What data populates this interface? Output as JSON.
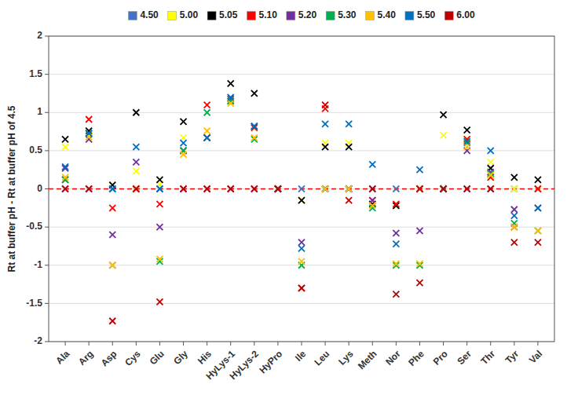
{
  "chart_data": {
    "type": "scatter",
    "marker": "x",
    "categories": [
      "Ala",
      "Arg",
      "Asp",
      "Cys",
      "Glu",
      "Gly",
      "His",
      "HyLys-1",
      "HyLys-2",
      "HyPro",
      "Ile",
      "Leu",
      "Lys",
      "Meth",
      "Nor",
      "Phe",
      "Pro",
      "Ser",
      "Thr",
      "Tyr",
      "Val"
    ],
    "series": [
      {
        "name": "4.50",
        "color": "#4472C4",
        "values": [
          0.0,
          0.0,
          0.0,
          0.0,
          0.0,
          0.0,
          0.0,
          0.0,
          0.0,
          0.0,
          0.0,
          0.0,
          0.0,
          0.0,
          0.0,
          0.0,
          0.0,
          0.0,
          0.0,
          0.0,
          0.0
        ]
      },
      {
        "name": "5.00",
        "color": "#FFFF00",
        "values": [
          0.55,
          0.72,
          0.05,
          0.23,
          0.06,
          0.67,
          0.67,
          1.17,
          0.8,
          0.0,
          -0.15,
          0.6,
          0.6,
          -0.2,
          -0.22,
          0.0,
          0.7,
          0.65,
          0.35,
          0.0,
          0.0
        ]
      },
      {
        "name": "5.05",
        "color": "#000000",
        "values": [
          0.65,
          0.76,
          0.05,
          1.0,
          0.12,
          0.88,
          0.67,
          1.38,
          1.25,
          0.0,
          -0.15,
          0.55,
          0.55,
          -0.2,
          -0.22,
          0.0,
          0.97,
          0.77,
          0.27,
          0.15,
          0.12
        ]
      },
      {
        "name": "5.10",
        "color": "#FF0000",
        "values": [
          0.12,
          0.91,
          -0.25,
          0.0,
          -0.2,
          0.5,
          1.1,
          1.15,
          0.8,
          0.0,
          -1.3,
          1.05,
          0.0,
          -0.15,
          -0.2,
          0.0,
          0.0,
          0.65,
          0.15,
          -0.5,
          0.0
        ]
      },
      {
        "name": "5.20",
        "color": "#7030A0",
        "values": [
          0.27,
          0.65,
          -0.6,
          0.35,
          -0.5,
          0.5,
          0.67,
          1.18,
          0.82,
          0.0,
          -0.7,
          0.0,
          0.0,
          -0.15,
          -0.58,
          -0.55,
          0.0,
          0.5,
          0.22,
          -0.27,
          -0.25
        ]
      },
      {
        "name": "5.30",
        "color": "#00B050",
        "values": [
          0.12,
          0.72,
          -1.0,
          0.0,
          -0.95,
          0.5,
          1.0,
          1.15,
          0.65,
          0.0,
          -1.0,
          0.0,
          0.0,
          -0.25,
          -1.0,
          -1.0,
          0.0,
          0.6,
          0.2,
          -0.45,
          -0.55
        ]
      },
      {
        "name": "5.40",
        "color": "#FFC000",
        "values": [
          0.15,
          0.68,
          -1.0,
          0.0,
          -0.92,
          0.45,
          0.76,
          1.12,
          0.67,
          0.0,
          -0.95,
          0.0,
          0.0,
          -0.22,
          -0.98,
          -0.98,
          0.0,
          0.55,
          0.18,
          -0.5,
          -0.55
        ]
      },
      {
        "name": "5.50",
        "color": "#0070C0",
        "values": [
          0.29,
          0.73,
          0.0,
          0.55,
          0.0,
          0.6,
          0.67,
          1.2,
          0.82,
          0.0,
          -0.78,
          0.85,
          0.85,
          0.32,
          -0.72,
          0.25,
          0.0,
          0.62,
          0.5,
          -0.35,
          -0.25
        ]
      },
      {
        "name": "6.00",
        "color": "#C00000",
        "values": [
          0.0,
          0.0,
          -1.73,
          0.0,
          -1.48,
          0.0,
          0.0,
          0.0,
          0.0,
          0.0,
          -1.3,
          1.1,
          -0.15,
          0.0,
          -1.38,
          -1.23,
          0.0,
          0.0,
          0.0,
          -0.7,
          -0.7
        ]
      }
    ],
    "ylabel": "Rt at buffer pH - Rt at buffer pH of 4.5",
    "ylim": [
      -2.0,
      2.0
    ],
    "yticks": [
      -2,
      -1.5,
      -1,
      -0.5,
      0,
      0.5,
      1,
      1.5,
      2
    ],
    "hlines": [
      {
        "y": 0,
        "color": "#FF0000",
        "line_style": "dashed"
      }
    ],
    "grid": true,
    "legend": "top"
  }
}
